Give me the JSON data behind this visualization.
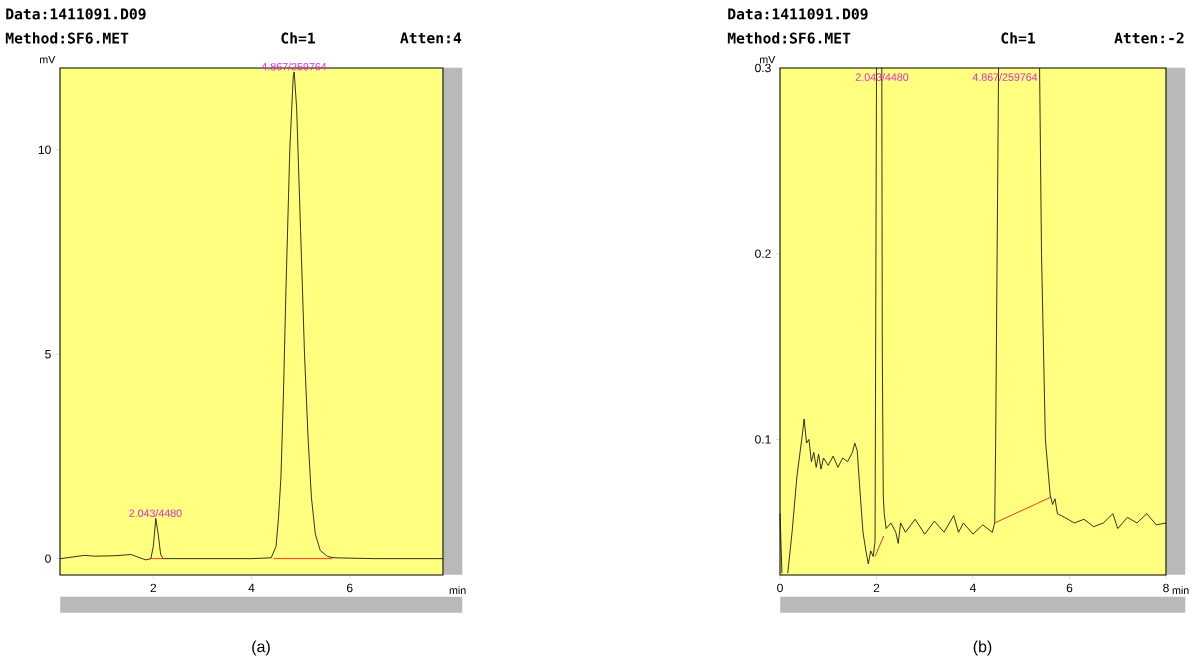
{
  "chart_data": [
    {
      "type": "line",
      "title": "Data:1411091.D09",
      "subtitle": "Method:SF6.MET",
      "xlabel": "min",
      "ylabel": "mV",
      "annotations": [
        "Ch=1",
        "Atten:4",
        {
          "text": "4.867/259764",
          "x": 4.867,
          "y": 11.9
        },
        {
          "text": "2.043/4480",
          "x": 2.043,
          "y": 0.98
        },
        "(a)"
      ],
      "xlim": [
        0.1,
        7.9
      ],
      "ylim": [
        -0.4,
        12
      ],
      "xticks": [
        2,
        4,
        6
      ],
      "yticks": [
        0,
        5,
        10
      ],
      "series": [
        {
          "color": "#000000",
          "x": [
            0.1,
            0.3,
            0.6,
            0.8,
            1.2,
            1.55,
            1.7,
            1.85,
            1.95,
            2.0,
            2.05,
            2.1,
            2.15,
            2.2,
            3.0,
            4.0,
            4.4,
            4.5,
            4.55,
            4.6,
            4.65,
            4.7,
            4.78,
            4.85,
            4.87,
            4.92,
            5.0,
            5.08,
            5.15,
            5.22,
            5.3,
            5.4,
            5.55,
            5.7,
            6.5,
            7.9
          ],
          "values": [
            0.0,
            0.03,
            0.08,
            0.06,
            0.07,
            0.1,
            0.03,
            -0.03,
            0.0,
            0.3,
            0.98,
            0.6,
            0.1,
            0.0,
            0.0,
            0.0,
            0.02,
            0.3,
            1.0,
            2.0,
            4.0,
            6.5,
            10.0,
            11.8,
            11.9,
            11.0,
            8.0,
            5.0,
            3.0,
            1.5,
            0.6,
            0.2,
            0.05,
            0.02,
            0.0,
            0.0
          ]
        },
        {
          "color": "#ff0000",
          "x": [
            1.95,
            2.2
          ],
          "values": [
            0.0,
            0.0
          ]
        },
        {
          "color": "#ff0000",
          "x": [
            4.45,
            5.65
          ],
          "values": [
            0.0,
            0.0
          ]
        }
      ]
    },
    {
      "type": "line",
      "title": "Data:1411091.D09",
      "subtitle": "Method:SF6.MET",
      "xlabel": "min",
      "ylabel": "mV",
      "annotations": [
        "Ch=1",
        "Atten:-2",
        "2.043/4480",
        "4.867/259764",
        "(b)"
      ],
      "xlim": [
        0,
        8
      ],
      "ylim": [
        0.027,
        0.3
      ],
      "xticks": [
        0,
        2,
        4,
        6,
        8
      ],
      "yticks": [
        0.1,
        0.2,
        0.3
      ],
      "series": [
        {
          "color": "#000000",
          "x": [
            0,
            0.04,
            0.08,
            0.16,
            0.25,
            0.35,
            0.45,
            0.5,
            0.55,
            0.6,
            0.65,
            0.7,
            0.75,
            0.8,
            0.85,
            0.9,
            1.0,
            1.1,
            1.2,
            1.3,
            1.4,
            1.5,
            1.55,
            1.6,
            1.65,
            1.72,
            1.78,
            1.83,
            1.88,
            1.93,
            1.97,
            2.0,
            2.07,
            2.11,
            2.12,
            2.14,
            2.16,
            2.2,
            2.3,
            2.4,
            2.45,
            2.5,
            2.6,
            2.8,
            3.0,
            3.2,
            3.4,
            3.6,
            3.7,
            3.8,
            4.0,
            4.2,
            4.4,
            4.45,
            4.47,
            4.5,
            4.53,
            4.87,
            5.38,
            5.42,
            5.5,
            5.6,
            5.65,
            5.7,
            5.75,
            5.9,
            6.1,
            6.3,
            6.5,
            6.7,
            6.9,
            7.0,
            7.2,
            7.4,
            7.6,
            7.8,
            8.0
          ],
          "values": [
            0.06,
            0.028,
            null,
            0.028,
            0.05,
            0.08,
            0.1,
            0.111,
            0.098,
            0.1,
            0.088,
            0.093,
            0.085,
            0.092,
            0.084,
            0.09,
            0.086,
            0.091,
            0.085,
            0.09,
            0.088,
            0.093,
            0.098,
            0.094,
            0.075,
            0.05,
            0.04,
            0.033,
            0.04,
            0.037,
            0.045,
            0.3,
            null,
            0.3,
            0.15,
            0.07,
            0.06,
            0.052,
            0.055,
            0.05,
            0.044,
            0.055,
            0.05,
            0.057,
            0.049,
            0.056,
            0.05,
            0.059,
            0.05,
            0.055,
            0.049,
            0.054,
            0.05,
            0.055,
            0.1,
            0.2,
            0.3,
            null,
            0.3,
            0.2,
            0.1,
            0.07,
            0.065,
            0.068,
            0.06,
            0.058,
            0.055,
            0.057,
            0.053,
            0.055,
            0.06,
            0.052,
            0.058,
            0.055,
            0.06,
            0.054,
            0.055
          ]
        },
        {
          "color": "#ff0000",
          "x": [
            1.97,
            2.15
          ],
          "values": [
            0.037,
            0.048
          ]
        },
        {
          "color": "#ff0000",
          "x": [
            4.45,
            5.62
          ],
          "values": [
            0.055,
            0.069
          ]
        }
      ]
    }
  ]
}
